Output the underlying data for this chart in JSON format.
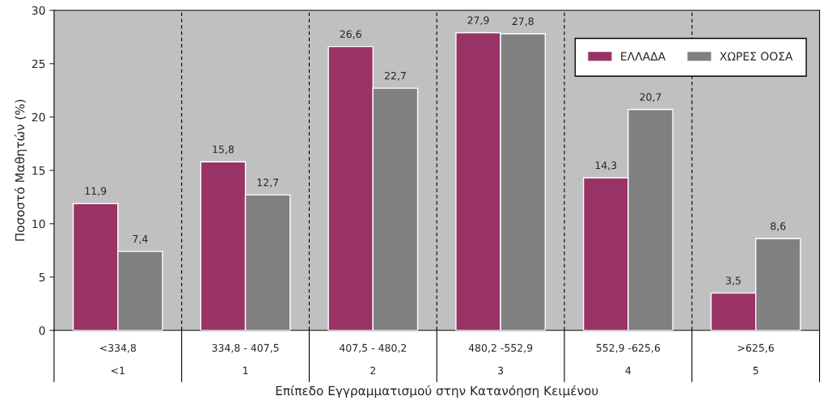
{
  "chart_data": {
    "type": "bar",
    "xlabel": "Επίπεδο Εγγραμματισμού στην Κατανόηση Κειμένου",
    "ylabel": "Ποσοστό Μαθητών (%)",
    "categories": [
      "<334,8\n\n<1",
      "334,8 - 407,5\n\n1",
      "407,5 - 480,2\n\n2",
      "480,2 -552,9\n\n3",
      "552,9 -625,6\n\n4",
      ">625,6\n\n5"
    ],
    "series": [
      {
        "name": "ΕΛΛΑΔΑ",
        "color": "#993366",
        "values": [
          11.9,
          15.8,
          26.6,
          27.9,
          14.3,
          3.5
        ],
        "value_labels": [
          "11,9",
          "15,8",
          "26,6",
          "27,9",
          "14,3",
          "3,5"
        ]
      },
      {
        "name": "ΧΩΡΕΣ ΟΟΣΑ",
        "color": "#808080",
        "values": [
          7.4,
          12.7,
          22.7,
          27.8,
          20.7,
          8.6
        ],
        "value_labels": [
          "7,4",
          "12,7",
          "22,7",
          "27,8",
          "20,7",
          "8,6"
        ]
      }
    ],
    "ylim": [
      0,
      30
    ],
    "yticks": [
      0,
      5,
      10,
      15,
      20,
      25,
      30
    ],
    "grid": "x",
    "legend": "top right"
  }
}
